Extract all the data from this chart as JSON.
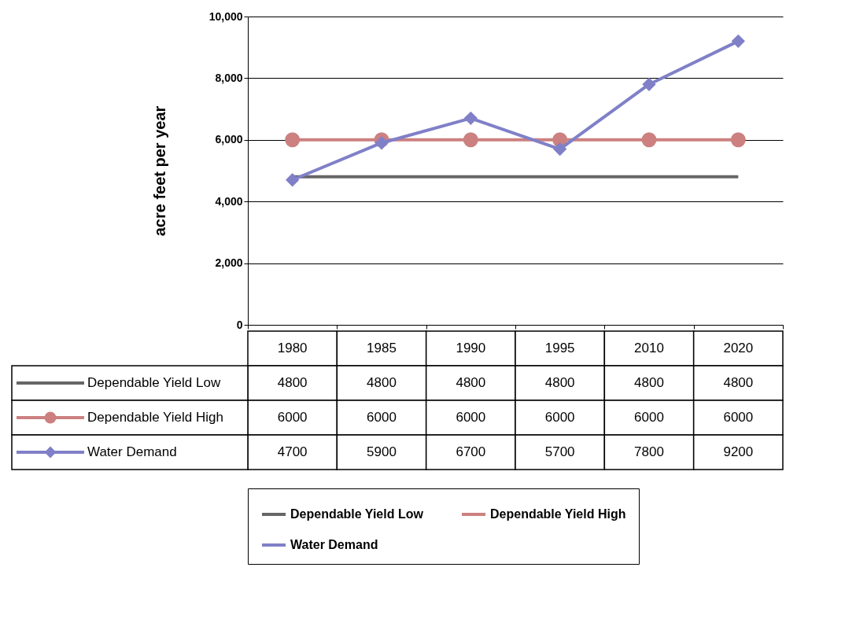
{
  "chart_data": {
    "type": "line",
    "ylabel": "acre feet per year",
    "categories": [
      "1980",
      "1985",
      "1990",
      "1995",
      "2010",
      "2020"
    ],
    "series": [
      {
        "name": "Dependable Yield Low",
        "color": "#666666",
        "marker": "none",
        "values": [
          4800,
          4800,
          4800,
          4800,
          4800,
          4800
        ]
      },
      {
        "name": "Dependable Yield High",
        "color": "#cc8080",
        "marker": "circle",
        "values": [
          6000,
          6000,
          6000,
          6000,
          6000,
          6000
        ]
      },
      {
        "name": "Water Demand",
        "color": "#8080c8",
        "marker": "diamond",
        "values": [
          4700,
          5900,
          6700,
          5700,
          7800,
          9200
        ]
      }
    ],
    "ylim": [
      0,
      10000
    ],
    "yticks": [
      0,
      {
        "value": 2000,
        "label": "2,000"
      },
      {
        "value": 4000,
        "label": "4,000"
      },
      {
        "value": 6000,
        "label": "6,000"
      },
      {
        "value": 8000,
        "label": "8,000"
      },
      {
        "value": 10000,
        "label": "10,000"
      }
    ],
    "grid": "y",
    "legend": "bottom",
    "data_labels": true,
    "tick_labels": "y"
  }
}
